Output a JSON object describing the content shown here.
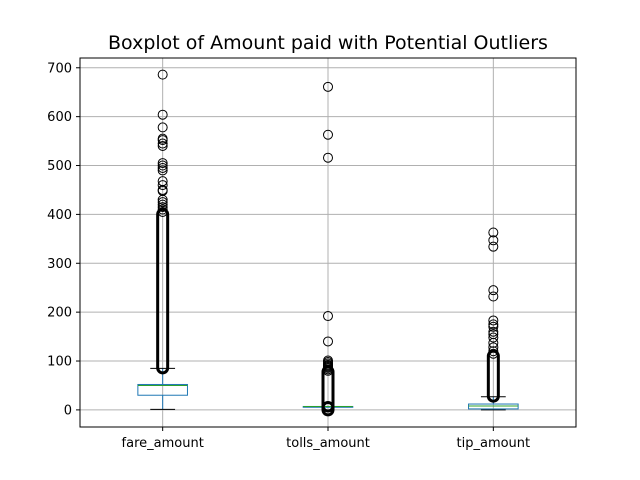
{
  "chart_data": {
    "type": "box",
    "title": "Boxplot of Amount paid with Potential Outliers",
    "xlabel": "",
    "ylabel": "",
    "categories": [
      "fare_amount",
      "tolls_amount",
      "tip_amount"
    ],
    "ylim": [
      -35,
      720
    ],
    "yticks": [
      0,
      100,
      200,
      300,
      400,
      500,
      600,
      700
    ],
    "grid": true,
    "colors": {
      "box": "#1f77b4",
      "median": "#2ca02c",
      "whisker": "#1f77b4",
      "cap": "#000000",
      "grid": "#b0b0b0",
      "outlier": "#000000"
    },
    "boxes": [
      {
        "name": "fare_amount",
        "whisker_low": 1,
        "q1": 30,
        "median": 50,
        "q3": 52,
        "whisker_high": 85,
        "outlier_bands": [
          [
            86,
            400
          ]
        ],
        "outliers": [
          405,
          410,
          415,
          420,
          425,
          430,
          448,
          450,
          460,
          468,
          490,
          495,
          500,
          505,
          540,
          545,
          552,
          555,
          578,
          604,
          686
        ]
      },
      {
        "name": "tolls_amount",
        "whisker_low": 7,
        "q1": 7,
        "median": 7,
        "q3": 7,
        "whisker_high": 7,
        "outlier_bands": [
          [
            0,
            5
          ],
          [
            8,
            78
          ]
        ],
        "outliers": [
          80,
          83,
          86,
          88,
          90,
          92,
          95,
          98,
          101,
          140,
          192,
          516,
          563,
          661
        ]
      },
      {
        "name": "tip_amount",
        "whisker_low": 0,
        "q1": 2,
        "median": 8,
        "q3": 12,
        "whisker_high": 27,
        "outlier_bands": [
          [
            28,
            110
          ]
        ],
        "outliers": [
          115,
          120,
          128,
          137,
          148,
          155,
          160,
          170,
          175,
          183,
          232,
          245,
          334,
          347,
          363
        ]
      }
    ]
  }
}
